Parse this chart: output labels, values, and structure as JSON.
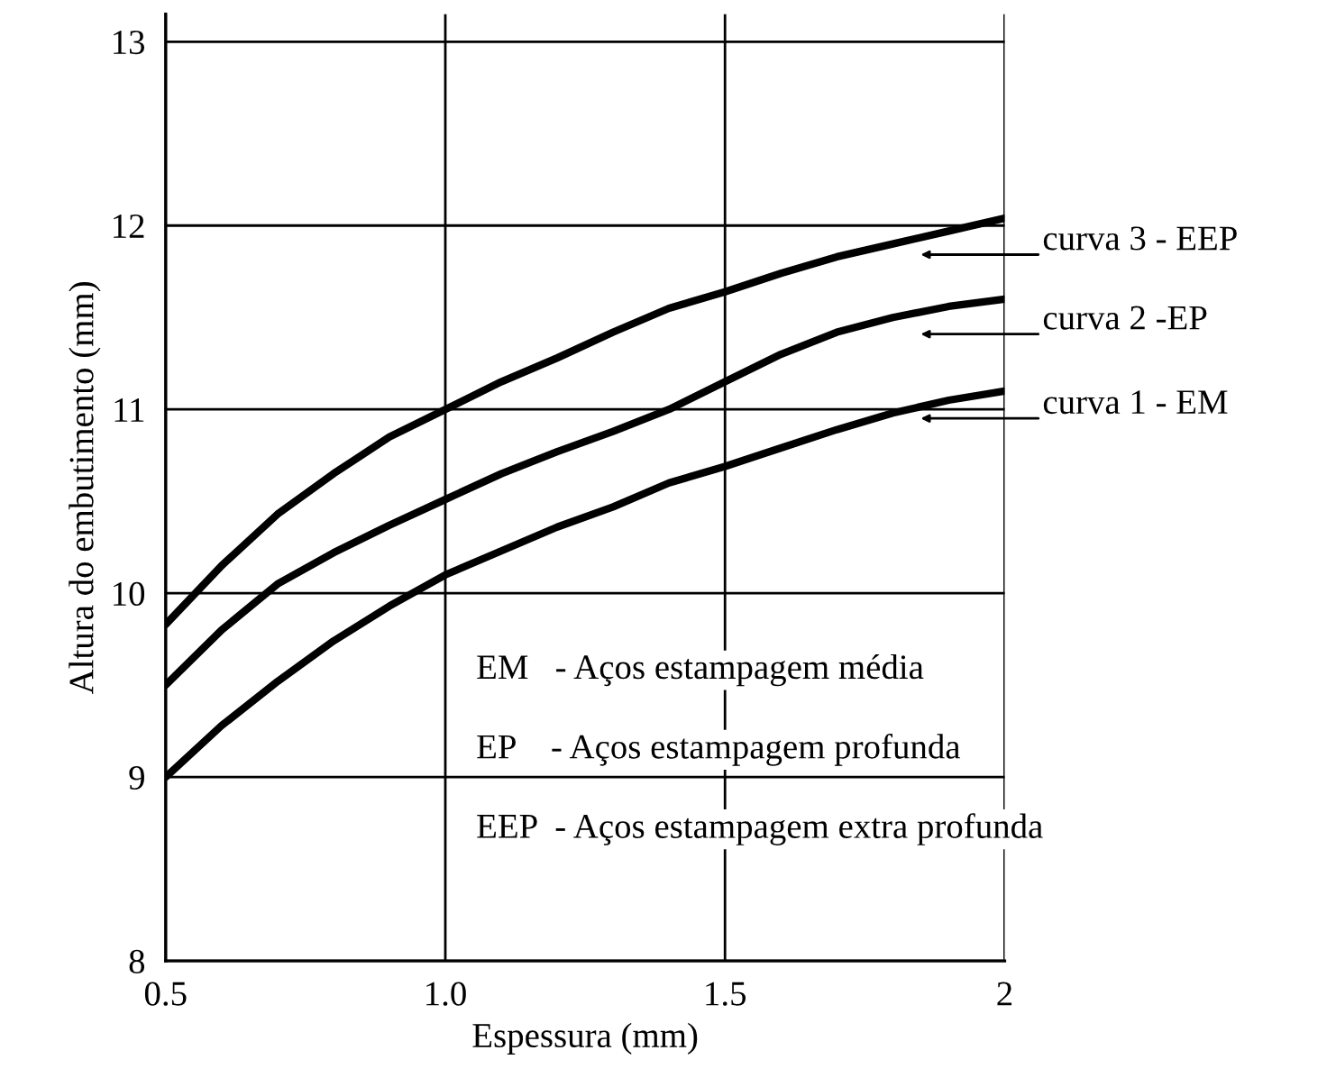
{
  "chart_data": {
    "type": "line",
    "xlabel": "Espessura (mm)",
    "ylabel": "Altura do embutimento (mm)",
    "x": [
      0.5,
      0.6,
      0.7,
      0.8,
      0.9,
      1.0,
      1.1,
      1.2,
      1.3,
      1.4,
      1.5,
      1.6,
      1.7,
      1.8,
      1.9,
      2.0
    ],
    "series": [
      {
        "color": "#000000",
        "values": [
          9.83,
          10.15,
          10.43,
          10.65,
          10.85,
          11.0,
          11.15,
          11.28,
          11.42,
          11.55,
          11.64,
          11.74,
          11.83,
          11.9,
          11.97,
          12.04
        ]
      },
      {
        "color": "#000000",
        "values": [
          9.5,
          9.8,
          10.05,
          10.22,
          10.37,
          10.51,
          10.65,
          10.77,
          10.88,
          11.0,
          11.15,
          11.3,
          11.42,
          11.5,
          11.56,
          11.6
        ]
      },
      {
        "color": "#000000",
        "values": [
          9.0,
          9.28,
          9.52,
          9.74,
          9.93,
          10.1,
          10.23,
          10.36,
          10.47,
          10.6,
          10.69,
          10.79,
          10.89,
          10.98,
          11.05,
          11.1
        ]
      }
    ],
    "xlim": [
      0.5,
      2.0
    ],
    "ylim": [
      8,
      13.15
    ],
    "xticks": [
      {
        "value": 0.5,
        "label": "0.5"
      },
      {
        "value": 1.0,
        "label": "1.0"
      },
      {
        "value": 1.5,
        "label": "1.5"
      },
      {
        "value": 2,
        "label": "2"
      }
    ],
    "yticks": [
      8,
      9,
      10,
      11,
      12,
      13
    ],
    "grid": true,
    "marker": "none",
    "line_style": "solid",
    "annotations": [
      "curva 3 - EEP",
      "curva 2 -EP",
      "curva 1 - EM",
      "EM   - Aços estampagem média",
      "EP    - Aços estampagem profunda",
      "EEP  - Aços estampagem extra profunda"
    ]
  }
}
